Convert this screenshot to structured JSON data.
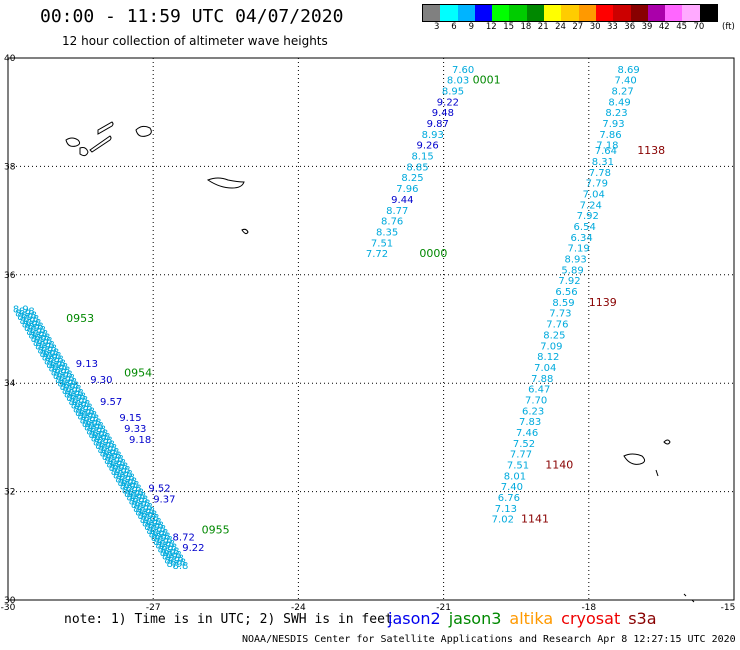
{
  "header": {
    "title": "00:00 - 11:59 UTC 04/07/2020",
    "subtitle": "12 hour collection of altimeter wave heights"
  },
  "colorbar": {
    "unit_label": "(ft)",
    "colors": [
      "#808080",
      "#00ffff",
      "#00b4ff",
      "#0000ff",
      "#00ff00",
      "#00cc00",
      "#008800",
      "#ffff00",
      "#ffcc00",
      "#ff9900",
      "#ff0000",
      "#cc0000",
      "#880000",
      "#aa00aa",
      "#ff66ff",
      "#ffaaff",
      "#000000"
    ],
    "labels": [
      "3",
      "6",
      "9",
      "12",
      "15",
      "18",
      "21",
      "24",
      "27",
      "30",
      "33",
      "36",
      "39",
      "42",
      "45",
      "70"
    ]
  },
  "map": {
    "lon_ticks": [
      "-30",
      "-27",
      "-24",
      "-21",
      "-18",
      "-15"
    ],
    "lat_ticks": [
      "40",
      "38",
      "36",
      "34",
      "32",
      "30"
    ],
    "lon_range": [
      -30,
      -15
    ],
    "lat_range": [
      30,
      40
    ],
    "tracks": [
      {
        "name": "track-0000",
        "time_label": "0000",
        "time_label_color": "#008800",
        "points": [
          {
            "lat": 39.8,
            "v": "7.60",
            "c": "#00aadd"
          },
          {
            "lat": 39.6,
            "v": "8.03",
            "c": "#00aadd"
          },
          {
            "lat": 39.4,
            "v": "8.95",
            "c": "#00aadd"
          },
          {
            "lat": 39.2,
            "v": "9.22",
            "c": "#0000cc"
          },
          {
            "lat": 39.0,
            "v": "9.48",
            "c": "#0000cc"
          },
          {
            "lat": 38.8,
            "v": "9.87",
            "c": "#0000cc"
          },
          {
            "lat": 38.6,
            "v": "8.93",
            "c": "#00aadd"
          },
          {
            "lat": 38.4,
            "v": "9.26",
            "c": "#0000cc"
          },
          {
            "lat": 38.2,
            "v": "8.15",
            "c": "#00aadd"
          },
          {
            "lat": 38.0,
            "v": "8.85",
            "c": "#00aadd"
          },
          {
            "lat": 37.8,
            "v": "8.25",
            "c": "#00aadd"
          },
          {
            "lat": 37.6,
            "v": "7.96",
            "c": "#00aadd"
          },
          {
            "lat": 37.4,
            "v": "9.44",
            "c": "#0000cc"
          },
          {
            "lat": 37.2,
            "v": "8.77",
            "c": "#00aadd"
          },
          {
            "lat": 37.0,
            "v": "8.76",
            "c": "#00aadd"
          },
          {
            "lat": 36.8,
            "v": "8.35",
            "c": "#00aadd"
          },
          {
            "lat": 36.6,
            "v": "7.51",
            "c": "#00aadd"
          },
          {
            "lat": 36.4,
            "v": "7.72",
            "c": "#00aadd"
          }
        ]
      },
      {
        "name": "track-1138",
        "time_label": "1138",
        "time_label_color": "#880000",
        "points": [
          {
            "lat": 39.8,
            "v": "8.69"
          },
          {
            "lat": 39.6,
            "v": "7.40"
          },
          {
            "lat": 39.4,
            "v": "8.27"
          },
          {
            "lat": 39.2,
            "v": "8.49"
          },
          {
            "lat": 39.0,
            "v": "8.23"
          },
          {
            "lat": 38.8,
            "v": "7.93"
          },
          {
            "lat": 38.6,
            "v": "7.86"
          },
          {
            "lat": 38.4,
            "v": "7.18"
          },
          {
            "lat": 38.3,
            "v": "7.64"
          },
          {
            "lat": 38.1,
            "v": "8.31"
          },
          {
            "lat": 37.9,
            "v": "7.78"
          },
          {
            "lat": 37.7,
            "v": "7.79"
          },
          {
            "lat": 37.5,
            "v": "7.04"
          },
          {
            "lat": 37.3,
            "v": "7.24"
          },
          {
            "lat": 37.1,
            "v": "7.92"
          },
          {
            "lat": 36.9,
            "v": "6.54"
          },
          {
            "lat": 36.7,
            "v": "6.34"
          },
          {
            "lat": 36.5,
            "v": "7.19"
          }
        ]
      },
      {
        "name": "track-1139",
        "time_label": "1139",
        "time_label_color": "#880000",
        "points": [
          {
            "lat": 36.3,
            "v": "8.93"
          },
          {
            "lat": 36.1,
            "v": "5.89"
          },
          {
            "lat": 35.9,
            "v": "7.92"
          },
          {
            "lat": 35.7,
            "v": "6.56"
          },
          {
            "lat": 35.5,
            "v": "8.59"
          },
          {
            "lat": 35.3,
            "v": "7.73"
          },
          {
            "lat": 35.1,
            "v": "7.76"
          },
          {
            "lat": 34.9,
            "v": "8.25"
          },
          {
            "lat": 34.7,
            "v": "7.09"
          },
          {
            "lat": 34.5,
            "v": "8.12"
          },
          {
            "lat": 34.3,
            "v": "7.04"
          },
          {
            "lat": 34.1,
            "v": "7.88"
          },
          {
            "lat": 33.9,
            "v": "6.47"
          },
          {
            "lat": 33.7,
            "v": "7.70"
          },
          {
            "lat": 33.5,
            "v": "6.23"
          },
          {
            "lat": 33.3,
            "v": "7.83"
          },
          {
            "lat": 33.1,
            "v": "7.46"
          }
        ]
      },
      {
        "name": "track-1140",
        "time_label": "1140",
        "time_label_color": "#880000",
        "points": [
          {
            "lat": 32.9,
            "v": "7.52"
          },
          {
            "lat": 32.7,
            "v": "7.77"
          },
          {
            "lat": 32.5,
            "v": "7.51"
          },
          {
            "lat": 32.3,
            "v": "8.01"
          },
          {
            "lat": 32.1,
            "v": "7.40"
          },
          {
            "lat": 31.9,
            "v": "6.76"
          },
          {
            "lat": 31.7,
            "v": "7.13"
          },
          {
            "lat": 31.5,
            "v": "7.02"
          }
        ]
      }
    ],
    "track_labels": [
      {
        "name": "label-0000-top",
        "text": "0001",
        "color": "#008800",
        "lon": -20.4,
        "lat": 39.6
      },
      {
        "name": "label-0000",
        "text": "0000",
        "color": "#008800",
        "lon": -21.5,
        "lat": 36.4
      },
      {
        "name": "label-1138",
        "text": "1138",
        "color": "#880000",
        "lon": -17.0,
        "lat": 38.3
      },
      {
        "name": "label-1139",
        "text": "1139",
        "color": "#880000",
        "lon": -18.0,
        "lat": 35.5
      },
      {
        "name": "label-1140",
        "text": "1140",
        "color": "#880000",
        "lon": -18.9,
        "lat": 32.5
      },
      {
        "name": "label-1141",
        "text": "1141",
        "color": "#880000",
        "lon": -19.4,
        "lat": 31.5
      },
      {
        "name": "label-0953",
        "text": "0953",
        "color": "#008800",
        "lon": -28.8,
        "lat": 35.2
      },
      {
        "name": "label-0954",
        "text": "0954",
        "color": "#008800",
        "lon": -27.6,
        "lat": 34.2
      },
      {
        "name": "label-0955",
        "text": "0955",
        "color": "#008800",
        "lon": -26.0,
        "lat": 31.3
      }
    ],
    "left_track_values": [
      {
        "v": "9.13",
        "c": "#0000cc",
        "lon": -28.6,
        "lat": 34.3
      },
      {
        "v": "9.30",
        "c": "#0000cc",
        "lon": -28.3,
        "lat": 34.0
      },
      {
        "v": "9.57",
        "c": "#0000cc",
        "lon": -28.1,
        "lat": 33.6
      },
      {
        "v": "9.15",
        "c": "#0000cc",
        "lon": -27.7,
        "lat": 33.3
      },
      {
        "v": "9.33",
        "c": "#0000cc",
        "lon": -27.6,
        "lat": 33.1
      },
      {
        "v": "9.18",
        "c": "#0000cc",
        "lon": -27.5,
        "lat": 32.9
      },
      {
        "v": "9.52",
        "c": "#0000cc",
        "lon": -27.1,
        "lat": 32.0
      },
      {
        "v": "9.37",
        "c": "#0000cc",
        "lon": -27.0,
        "lat": 31.8
      },
      {
        "v": "8.72",
        "c": "#0000cc",
        "lon": -26.6,
        "lat": 31.1
      },
      {
        "v": "9.22",
        "c": "#0000cc",
        "lon": -26.4,
        "lat": 30.9
      }
    ]
  },
  "footer": {
    "note": "note: 1) Time is in UTC; 2) SWH is in feet",
    "satellites": [
      {
        "name": "jason2",
        "color": "#0000ee"
      },
      {
        "name": "jason3",
        "color": "#008800"
      },
      {
        "name": "altika",
        "color": "#ff9900"
      },
      {
        "name": "cryosat",
        "color": "#ee0000"
      },
      {
        "name": "s3a",
        "color": "#880000"
      }
    ],
    "credit": "NOAA/NESDIS Center for Satellite Applications and Research   Apr  8 12:27:15 UTC 2020"
  }
}
